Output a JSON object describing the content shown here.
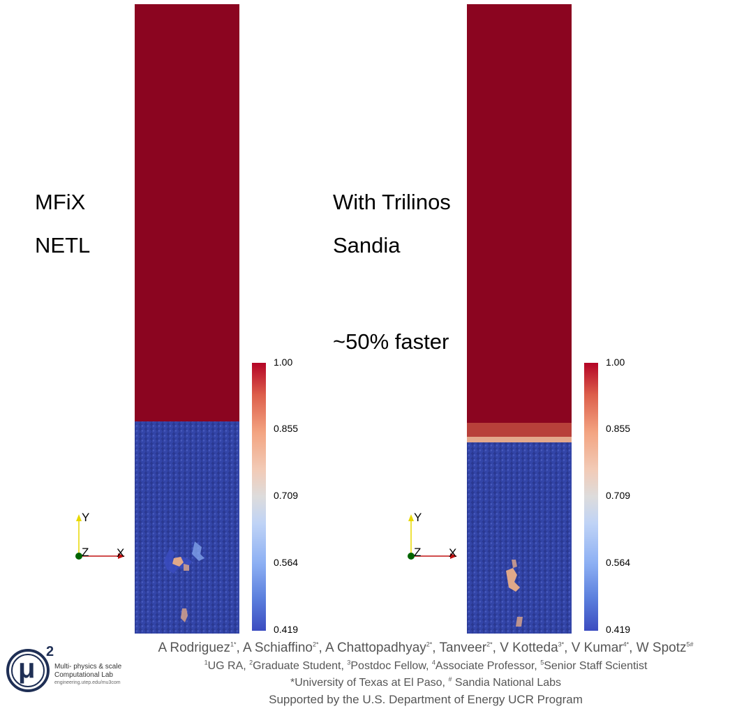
{
  "panels": [
    {
      "line1": "MFiX",
      "line2": "NETL",
      "note": ""
    },
    {
      "line1": "With Trilinos",
      "line2": "Sandia",
      "note": "~50% faster"
    }
  ],
  "colorbar": {
    "ticks": [
      "1.00",
      "0.855",
      "0.709",
      "0.564",
      "0.419"
    ],
    "min": 0.419,
    "max": 1.0
  },
  "axes": {
    "y": "Y",
    "z": "Z",
    "x": "X"
  },
  "credits": {
    "authors": [
      {
        "name": "A Rodriguez",
        "sup": "1*"
      },
      {
        "name": "A Schiaffino",
        "sup": "2*"
      },
      {
        "name": "A Chattopadhyay",
        "sup": "2*"
      },
      {
        "name": "Tanveer",
        "sup": "2*"
      },
      {
        "name": "V Kotteda",
        "sup": "3*"
      },
      {
        "name": "V Kumar",
        "sup": "4*"
      },
      {
        "name": "W Spotz",
        "sup": "5#"
      }
    ],
    "roles": [
      {
        "sup": "1",
        "text": "UG RA"
      },
      {
        "sup": "2",
        "text": "Graduate Student"
      },
      {
        "sup": "3",
        "text": "Postdoc Fellow"
      },
      {
        "sup": "4",
        "text": "Associate Professor"
      },
      {
        "sup": "5",
        "text": "Senior Staff Scientist"
      }
    ],
    "institution_a": "*University of Texas at El Paso,",
    "institution_sup": "#",
    "institution_b": " Sandia National Labs",
    "support": "Supported by the U.S. Department of Energy UCR Program"
  },
  "logo": {
    "symbol": "μ",
    "power": "2",
    "line1": "Multi- physics & scale",
    "line2": "Computational Lab",
    "url": "engineering.utep.edu/mu3com"
  },
  "colors": {
    "column_top": "#8b0520",
    "particles": "#2c3a9a",
    "voids": "#e0a889",
    "axis_y": "#e8d800",
    "axis_x": "#c01010",
    "axis_origin": "#006400"
  }
}
